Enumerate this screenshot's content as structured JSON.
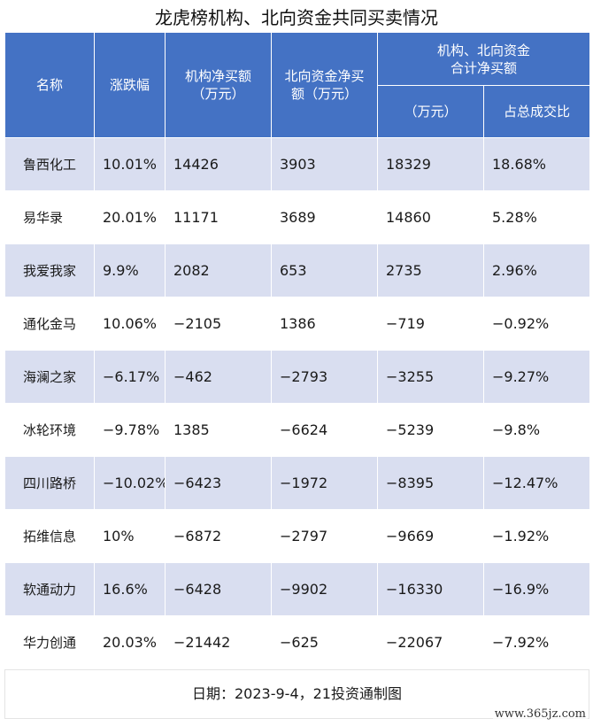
{
  "title": "龙虎榜机构、北向资金共同买卖情况",
  "header": {
    "name": "名称",
    "change": "涨跌幅",
    "inst_line1": "机构净买额",
    "inst_line2": "（万元）",
    "north_line1": "北向资金净买",
    "north_line2": "额（万元）",
    "combined_line1": "机构、北向资金",
    "combined_line2": "合计净买额",
    "combined_amount": "（万元）",
    "combined_ratio": "占总成交比"
  },
  "rows": [
    {
      "name": "鲁西化工",
      "change": "10.01%",
      "inst": "14426",
      "north": "3903",
      "total": "18329",
      "ratio": "18.68%"
    },
    {
      "name": "易华录",
      "change": "20.01%",
      "inst": "11171",
      "north": "3689",
      "total": "14860",
      "ratio": "5.28%"
    },
    {
      "name": "我爱我家",
      "change": "9.9%",
      "inst": "2082",
      "north": "653",
      "total": "2735",
      "ratio": "2.96%"
    },
    {
      "name": "通化金马",
      "change": "10.06%",
      "inst": "−2105",
      "north": "1386",
      "total": "−719",
      "ratio": "−0.92%"
    },
    {
      "name": "海澜之家",
      "change": "−6.17%",
      "inst": "−462",
      "north": "−2793",
      "total": "−3255",
      "ratio": "−9.27%"
    },
    {
      "name": "冰轮环境",
      "change": "−9.78%",
      "inst": "1385",
      "north": "−6624",
      "total": "−5239",
      "ratio": "−9.8%"
    },
    {
      "name": "四川路桥",
      "change": "−10.02%",
      "inst": "−6423",
      "north": "−1972",
      "total": "−8395",
      "ratio": "−12.47%"
    },
    {
      "name": "拓维信息",
      "change": "10%",
      "inst": "−6872",
      "north": "−2797",
      "total": "−9669",
      "ratio": "−1.92%"
    },
    {
      "name": "软通动力",
      "change": "16.6%",
      "inst": "−6428",
      "north": "−9902",
      "total": "−16330",
      "ratio": "−16.9%"
    },
    {
      "name": "华力创通",
      "change": "20.03%",
      "inst": "−21442",
      "north": "−625",
      "total": "−22067",
      "ratio": "−7.92%"
    }
  ],
  "footer": "日期：2023-9-4，21投资通制图",
  "watermark": "www.365jz.com",
  "colors": {
    "header_bg": "#4472c4",
    "header_text": "#ffffff",
    "row_alt_bg": "#d9def0",
    "row_bg": "#ffffff"
  }
}
